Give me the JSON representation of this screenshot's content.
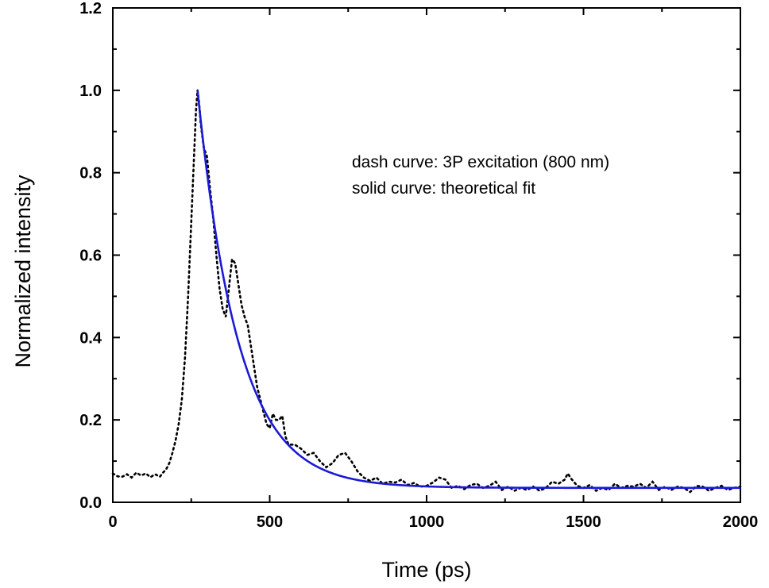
{
  "chart_data": {
    "type": "line",
    "xlabel": "Time (ps)",
    "ylabel": "Normalized intensity",
    "xlim": [
      0,
      2000
    ],
    "ylim": [
      0,
      1.2
    ],
    "x_ticks": [
      "0",
      "500",
      "1000",
      "1500",
      "2000"
    ],
    "y_ticks": [
      "0.0",
      "0.2",
      "0.4",
      "0.6",
      "0.8",
      "1.0",
      "1.2"
    ],
    "grid": false,
    "annotations": [
      "dash curve: 3P excitation (800 nm)",
      "solid curve:  theoretical fit"
    ],
    "series": [
      {
        "style": "dotted",
        "color": "#000000",
        "points": [
          [
            0,
            0.07
          ],
          [
            15,
            0.063
          ],
          [
            30,
            0.062
          ],
          [
            45,
            0.068
          ],
          [
            60,
            0.06
          ],
          [
            75,
            0.072
          ],
          [
            90,
            0.065
          ],
          [
            105,
            0.07
          ],
          [
            120,
            0.061
          ],
          [
            135,
            0.068
          ],
          [
            150,
            0.062
          ],
          [
            160,
            0.072
          ],
          [
            170,
            0.08
          ],
          [
            180,
            0.095
          ],
          [
            190,
            0.12
          ],
          [
            200,
            0.15
          ],
          [
            210,
            0.19
          ],
          [
            220,
            0.25
          ],
          [
            230,
            0.35
          ],
          [
            240,
            0.5
          ],
          [
            250,
            0.68
          ],
          [
            260,
            0.86
          ],
          [
            265,
            0.95
          ],
          [
            270,
            1.0
          ],
          [
            275,
            0.97
          ],
          [
            280,
            0.92
          ],
          [
            290,
            0.86
          ],
          [
            300,
            0.84
          ],
          [
            310,
            0.76
          ],
          [
            320,
            0.69
          ],
          [
            330,
            0.6
          ],
          [
            340,
            0.52
          ],
          [
            350,
            0.47
          ],
          [
            360,
            0.45
          ],
          [
            370,
            0.52
          ],
          [
            380,
            0.59
          ],
          [
            390,
            0.58
          ],
          [
            400,
            0.53
          ],
          [
            410,
            0.48
          ],
          [
            420,
            0.45
          ],
          [
            430,
            0.43
          ],
          [
            440,
            0.38
          ],
          [
            450,
            0.33
          ],
          [
            460,
            0.28
          ],
          [
            470,
            0.25
          ],
          [
            480,
            0.22
          ],
          [
            490,
            0.19
          ],
          [
            500,
            0.18
          ],
          [
            510,
            0.215
          ],
          [
            520,
            0.2
          ],
          [
            530,
            0.2
          ],
          [
            540,
            0.21
          ],
          [
            550,
            0.16
          ],
          [
            560,
            0.14
          ],
          [
            580,
            0.14
          ],
          [
            600,
            0.13
          ],
          [
            620,
            0.115
          ],
          [
            640,
            0.12
          ],
          [
            660,
            0.1
          ],
          [
            680,
            0.085
          ],
          [
            700,
            0.095
          ],
          [
            720,
            0.115
          ],
          [
            740,
            0.12
          ],
          [
            760,
            0.1
          ],
          [
            780,
            0.075
          ],
          [
            800,
            0.06
          ],
          [
            820,
            0.052
          ],
          [
            840,
            0.06
          ],
          [
            860,
            0.045
          ],
          [
            880,
            0.05
          ],
          [
            900,
            0.048
          ],
          [
            920,
            0.055
          ],
          [
            940,
            0.042
          ],
          [
            960,
            0.047
          ],
          [
            980,
            0.038
          ],
          [
            1000,
            0.04
          ],
          [
            1020,
            0.048
          ],
          [
            1040,
            0.06
          ],
          [
            1060,
            0.055
          ],
          [
            1080,
            0.035
          ],
          [
            1100,
            0.04
          ],
          [
            1120,
            0.032
          ],
          [
            1140,
            0.042
          ],
          [
            1160,
            0.045
          ],
          [
            1180,
            0.035
          ],
          [
            1200,
            0.04
          ],
          [
            1220,
            0.05
          ],
          [
            1240,
            0.03
          ],
          [
            1260,
            0.038
          ],
          [
            1280,
            0.028
          ],
          [
            1300,
            0.035
          ],
          [
            1320,
            0.03
          ],
          [
            1340,
            0.038
          ],
          [
            1360,
            0.028
          ],
          [
            1380,
            0.035
          ],
          [
            1400,
            0.05
          ],
          [
            1420,
            0.045
          ],
          [
            1440,
            0.055
          ],
          [
            1450,
            0.07
          ],
          [
            1460,
            0.058
          ],
          [
            1480,
            0.04
          ],
          [
            1500,
            0.035
          ],
          [
            1520,
            0.042
          ],
          [
            1540,
            0.028
          ],
          [
            1560,
            0.035
          ],
          [
            1580,
            0.03
          ],
          [
            1600,
            0.045
          ],
          [
            1620,
            0.035
          ],
          [
            1640,
            0.04
          ],
          [
            1660,
            0.038
          ],
          [
            1680,
            0.045
          ],
          [
            1700,
            0.035
          ],
          [
            1720,
            0.05
          ],
          [
            1740,
            0.03
          ],
          [
            1760,
            0.038
          ],
          [
            1780,
            0.03
          ],
          [
            1800,
            0.038
          ],
          [
            1820,
            0.035
          ],
          [
            1840,
            0.025
          ],
          [
            1860,
            0.04
          ],
          [
            1880,
            0.038
          ],
          [
            1900,
            0.028
          ],
          [
            1920,
            0.035
          ],
          [
            1940,
            0.04
          ],
          [
            1960,
            0.03
          ],
          [
            1980,
            0.035
          ],
          [
            2000,
            0.038
          ]
        ]
      },
      {
        "style": "solid",
        "color": "#1a1ad6",
        "model": "exponential decay",
        "x_start": 270,
        "x_end": 2000,
        "y0": 1.0,
        "baseline": 0.035,
        "tau": 130
      }
    ]
  }
}
